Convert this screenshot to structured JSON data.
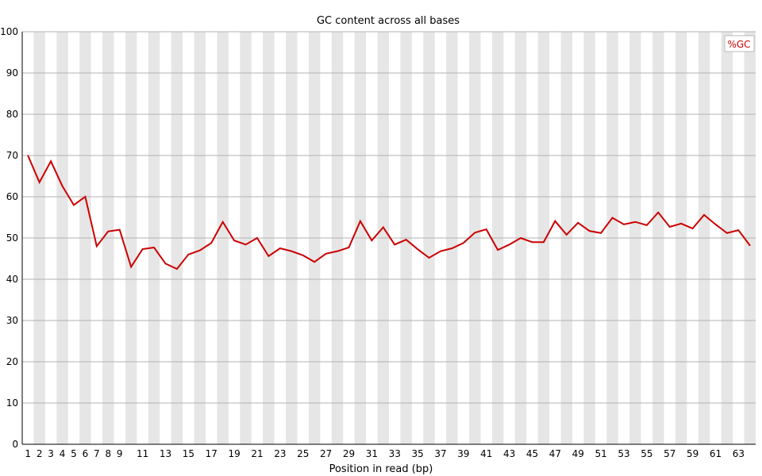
{
  "chart_data": {
    "type": "line",
    "title": "GC content across all bases",
    "xlabel": "Position in read (bp)",
    "ylabel": "",
    "ylim": [
      0,
      100
    ],
    "y_ticks": [
      "0",
      "10",
      "20",
      "30",
      "40",
      "50",
      "60",
      "70",
      "80",
      "90",
      "100"
    ],
    "x": [
      1,
      2,
      3,
      4,
      5,
      6,
      7,
      8,
      9,
      10,
      11,
      12,
      13,
      14,
      15,
      16,
      17,
      18,
      19,
      20,
      21,
      22,
      23,
      24,
      25,
      26,
      27,
      28,
      29,
      30,
      31,
      32,
      33,
      34,
      35,
      36,
      37,
      38,
      39,
      40,
      41,
      42,
      43,
      44,
      45,
      46,
      47,
      48,
      49,
      50,
      51,
      52,
      53,
      54,
      55,
      56,
      57,
      58,
      59,
      60,
      61,
      62,
      63,
      64
    ],
    "x_tick_labels": [
      "1",
      "2",
      "3",
      "4",
      "5",
      "6",
      "7",
      "8",
      "9",
      "",
      "11",
      "",
      "13",
      "",
      "15",
      "",
      "17",
      "",
      "19",
      "",
      "21",
      "",
      "23",
      "",
      "25",
      "",
      "27",
      "",
      "29",
      "",
      "31",
      "",
      "33",
      "",
      "35",
      "",
      "37",
      "",
      "39",
      "",
      "41",
      "",
      "43",
      "",
      "45",
      "",
      "47",
      "",
      "49",
      "",
      "51",
      "",
      "53",
      "",
      "55",
      "",
      "57",
      "",
      "59",
      "",
      "61",
      "",
      "63",
      ""
    ],
    "grid": true,
    "legend_position": "top-right",
    "series": [
      {
        "name": "%GC",
        "color": "#cc0000",
        "values": [
          70.0,
          63.5,
          68.6,
          62.6,
          58.0,
          60.0,
          48.0,
          51.6,
          52.0,
          43.0,
          47.3,
          47.7,
          43.8,
          42.5,
          46.0,
          47.0,
          48.8,
          53.9,
          49.4,
          48.4,
          50.0,
          45.6,
          47.5,
          46.8,
          45.8,
          44.2,
          46.2,
          46.8,
          47.7,
          54.1,
          49.4,
          52.6,
          48.4,
          49.6,
          47.3,
          45.2,
          46.8,
          47.5,
          48.8,
          51.3,
          52.1,
          47.1,
          48.4,
          50.0,
          49.0,
          49.0,
          54.1,
          50.8,
          53.7,
          51.7,
          51.2,
          54.9,
          53.3,
          53.9,
          53.1,
          56.2,
          52.7,
          53.5,
          52.3,
          55.6,
          53.3,
          51.2,
          51.9,
          48.2
        ]
      }
    ]
  },
  "colors": {
    "band": "#e6e6e6",
    "grid": "#b3b3b3",
    "axis": "#000000"
  }
}
